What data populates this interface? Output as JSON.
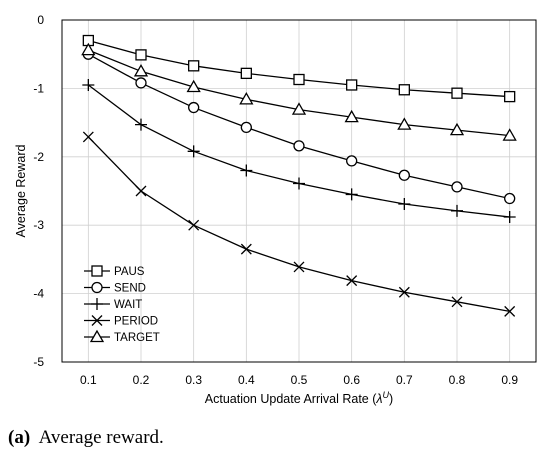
{
  "chart_data": {
    "type": "line",
    "x": [
      0.1,
      0.2,
      0.3,
      0.4,
      0.5,
      0.6,
      0.7,
      0.8,
      0.9
    ],
    "xlim": [
      0.05,
      0.95
    ],
    "ylim": [
      -5,
      0
    ],
    "x_ticks": [
      "0.1",
      "0.2",
      "0.3",
      "0.4",
      "0.5",
      "0.6",
      "0.7",
      "0.8",
      "0.9"
    ],
    "y_ticks": [
      "0",
      "-1",
      "-2",
      "-3",
      "-4",
      "-5"
    ],
    "y_tick_values": [
      0,
      -1,
      -2,
      -3,
      -4,
      -5
    ],
    "xlabel": "Actuation Update Arrival Rate (",
    "xlabel_symbol": "λ",
    "xlabel_superscript": "U",
    "xlabel_suffix": ")",
    "ylabel": "Average Reward",
    "grid": true,
    "legend_placement": "bottom-left",
    "line_color": "#000000",
    "series": [
      {
        "name": "PAUS",
        "marker": "square",
        "values": [
          -0.3,
          -0.51,
          -0.67,
          -0.78,
          -0.87,
          -0.95,
          -1.02,
          -1.07,
          -1.12
        ]
      },
      {
        "name": "SEND",
        "marker": "circle",
        "values": [
          -0.5,
          -0.92,
          -1.28,
          -1.57,
          -1.84,
          -2.06,
          -2.27,
          -2.44,
          -2.61
        ]
      },
      {
        "name": "WAIT",
        "marker": "plus",
        "values": [
          -0.95,
          -1.53,
          -1.92,
          -2.2,
          -2.39,
          -2.55,
          -2.69,
          -2.79,
          -2.88
        ]
      },
      {
        "name": "PERIOD",
        "marker": "cross",
        "values": [
          -1.71,
          -2.5,
          -3.0,
          -3.35,
          -3.61,
          -3.81,
          -3.98,
          -4.12,
          -4.26
        ]
      },
      {
        "name": "TARGET",
        "marker": "triangle",
        "values": [
          -0.44,
          -0.75,
          -0.98,
          -1.16,
          -1.31,
          -1.42,
          -1.53,
          -1.61,
          -1.69
        ]
      }
    ]
  },
  "caption": {
    "label": "(a)",
    "text": "Average reward."
  }
}
